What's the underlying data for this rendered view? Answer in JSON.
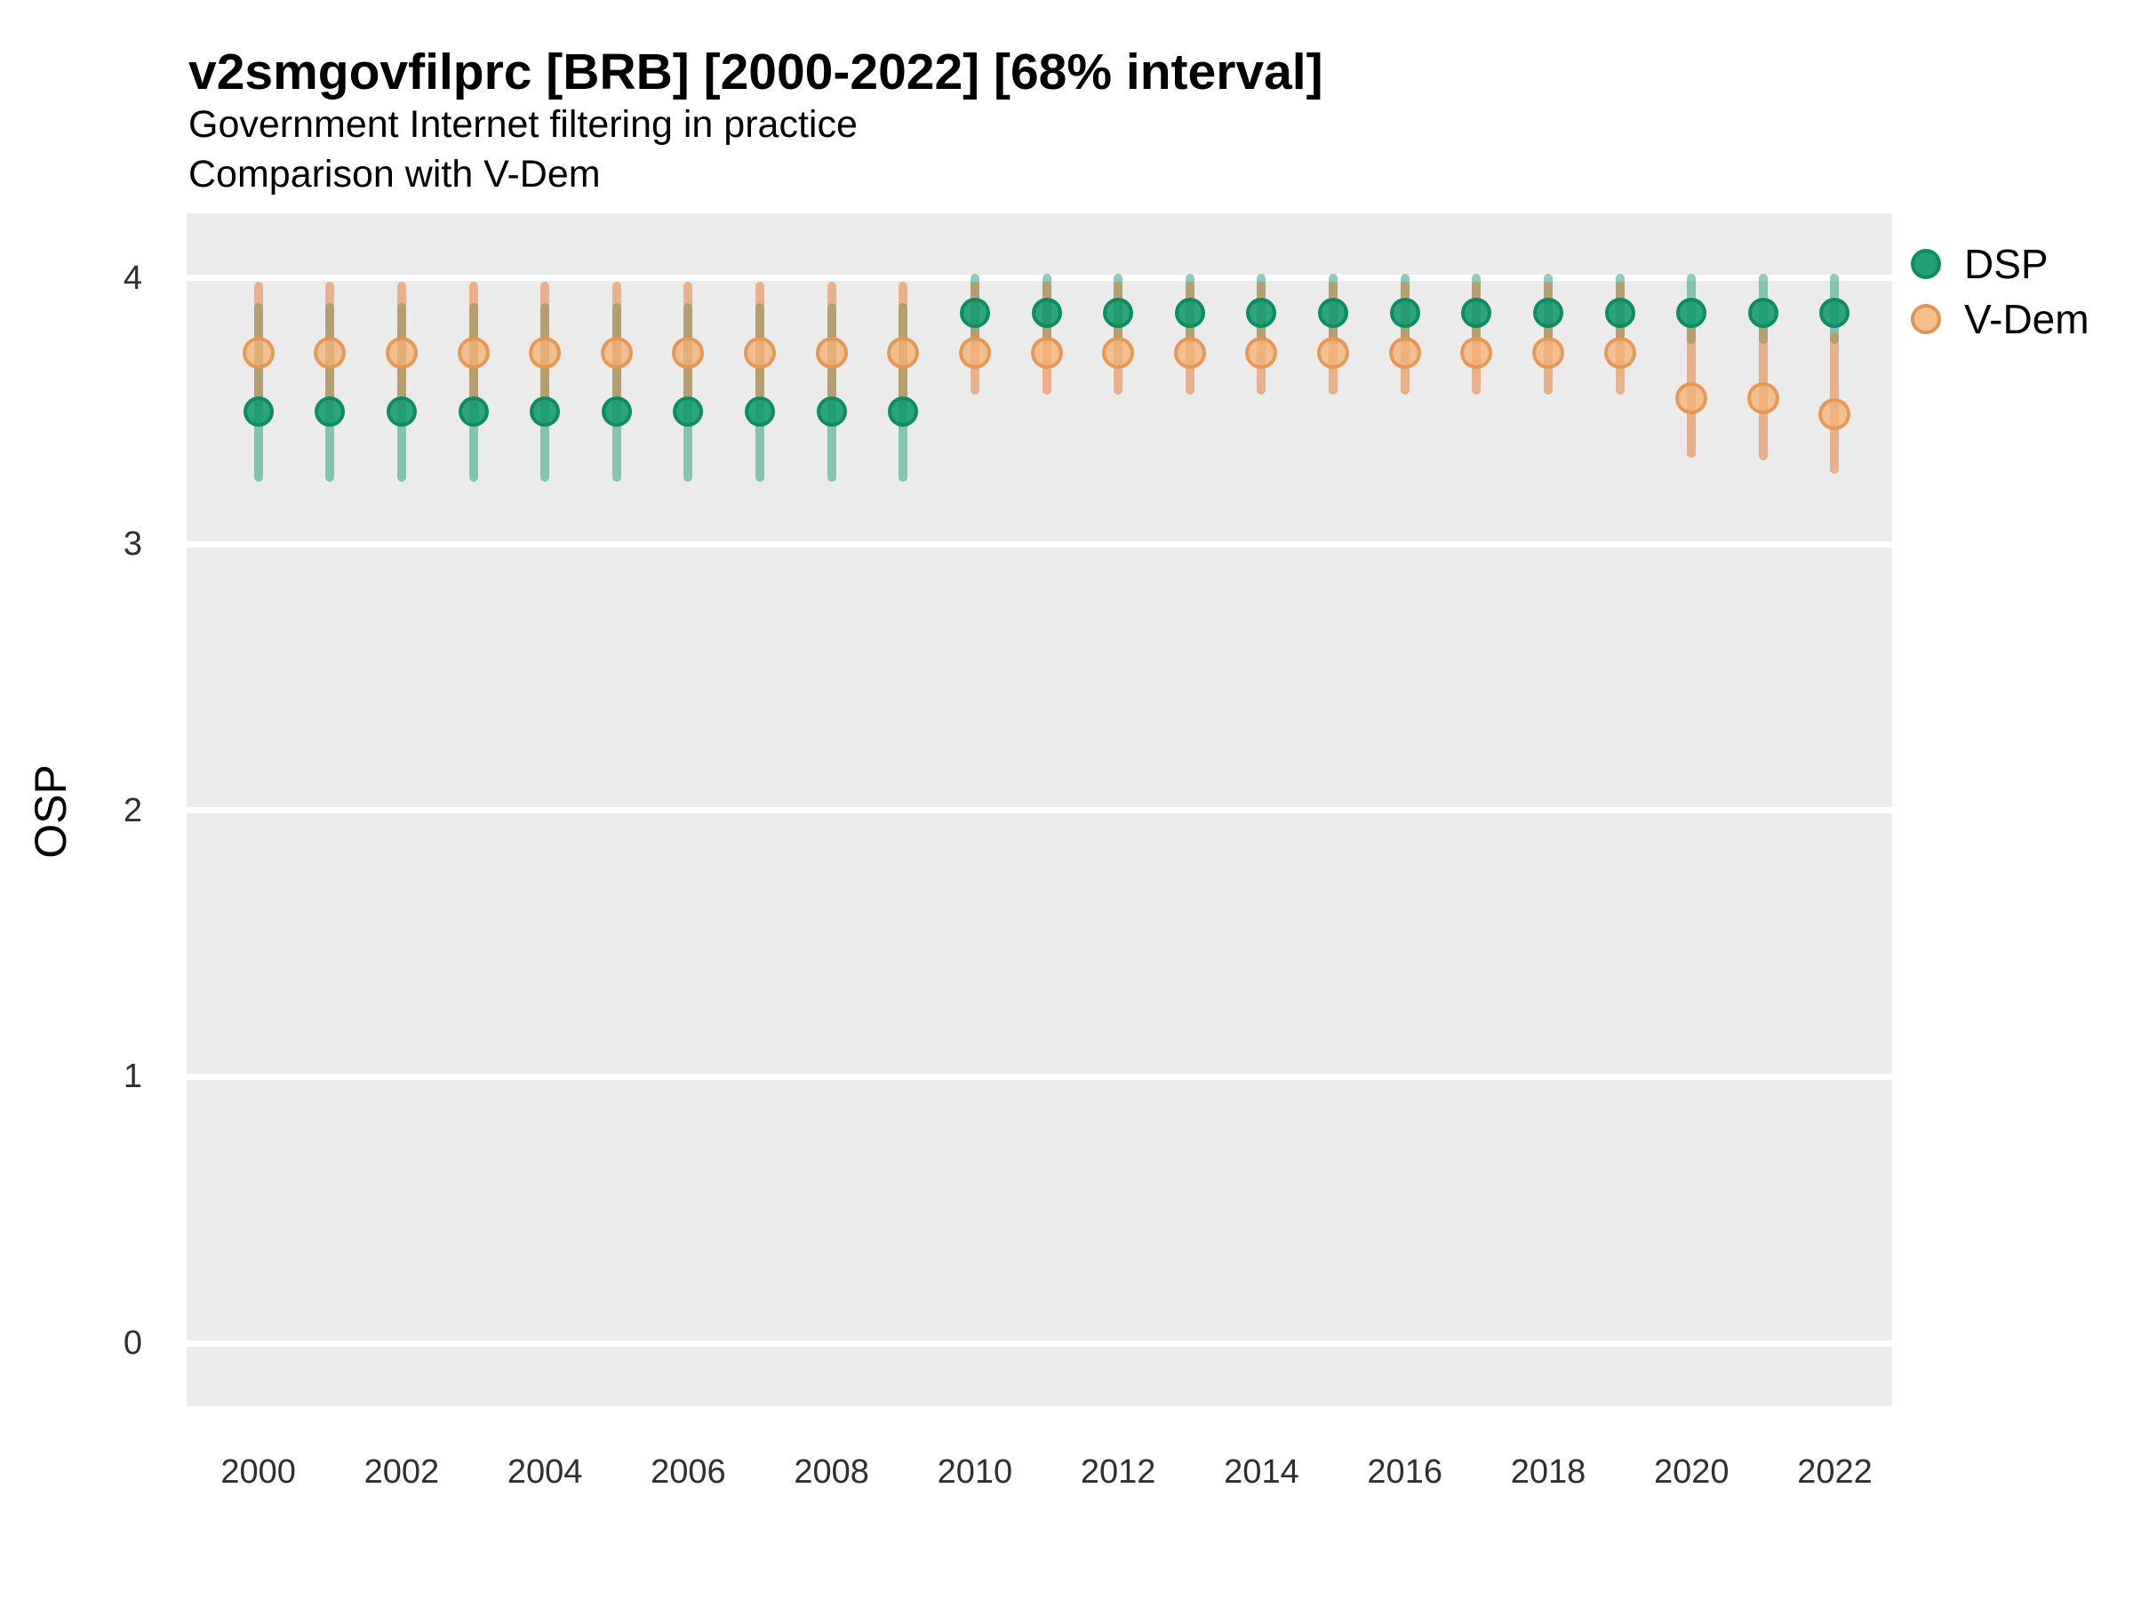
{
  "header": {
    "title": "v2smgovfilprc [BRB] [2000-2022] [68% interval]",
    "subtitle1": "Government Internet filtering in practice",
    "subtitle2": "Comparison with V-Dem"
  },
  "chart_data": {
    "type": "scatter",
    "subtype": "pointrange-interval-comparison",
    "title": "v2smgovfilprc [BRB] [2000-2022] [68% interval]",
    "subtitle": "Government Internet filtering in practice — Comparison with V-Dem",
    "xlabel": "",
    "ylabel": "OSP",
    "interval_level": "68%",
    "grid": "major-horizontal-white-on-gray",
    "panel_background": "#ebebeb",
    "legend_position": "right",
    "y_ticks": [
      4,
      3,
      2,
      1,
      0
    ],
    "x_ticks": [
      2000,
      2002,
      2004,
      2006,
      2008,
      2010,
      2012,
      2014,
      2016,
      2018,
      2020,
      2022
    ],
    "ylim": [
      -0.237,
      4.243
    ],
    "xlim": [
      1999.0,
      2022.8
    ],
    "series": [
      {
        "name": "DSP",
        "color": "#1b9e77",
        "points": [
          {
            "year": 2000,
            "mean": 3.5,
            "lo": 3.25,
            "hi": 3.89
          },
          {
            "year": 2001,
            "mean": 3.5,
            "lo": 3.25,
            "hi": 3.89
          },
          {
            "year": 2002,
            "mean": 3.5,
            "lo": 3.25,
            "hi": 3.89
          },
          {
            "year": 2003,
            "mean": 3.5,
            "lo": 3.25,
            "hi": 3.89
          },
          {
            "year": 2004,
            "mean": 3.5,
            "lo": 3.25,
            "hi": 3.89
          },
          {
            "year": 2005,
            "mean": 3.5,
            "lo": 3.25,
            "hi": 3.89
          },
          {
            "year": 2006,
            "mean": 3.5,
            "lo": 3.25,
            "hi": 3.89
          },
          {
            "year": 2007,
            "mean": 3.5,
            "lo": 3.25,
            "hi": 3.89
          },
          {
            "year": 2008,
            "mean": 3.5,
            "lo": 3.25,
            "hi": 3.89
          },
          {
            "year": 2009,
            "mean": 3.5,
            "lo": 3.25,
            "hi": 3.89
          },
          {
            "year": 2010,
            "mean": 3.87,
            "lo": 3.77,
            "hi": 4.0
          },
          {
            "year": 2011,
            "mean": 3.87,
            "lo": 3.77,
            "hi": 4.0
          },
          {
            "year": 2012,
            "mean": 3.87,
            "lo": 3.77,
            "hi": 4.0
          },
          {
            "year": 2013,
            "mean": 3.87,
            "lo": 3.77,
            "hi": 4.0
          },
          {
            "year": 2014,
            "mean": 3.87,
            "lo": 3.77,
            "hi": 4.0
          },
          {
            "year": 2015,
            "mean": 3.87,
            "lo": 3.77,
            "hi": 4.0
          },
          {
            "year": 2016,
            "mean": 3.87,
            "lo": 3.77,
            "hi": 4.0
          },
          {
            "year": 2017,
            "mean": 3.87,
            "lo": 3.77,
            "hi": 4.0
          },
          {
            "year": 2018,
            "mean": 3.87,
            "lo": 3.77,
            "hi": 4.0
          },
          {
            "year": 2019,
            "mean": 3.87,
            "lo": 3.77,
            "hi": 4.0
          },
          {
            "year": 2020,
            "mean": 3.87,
            "lo": 3.77,
            "hi": 4.0
          },
          {
            "year": 2021,
            "mean": 3.87,
            "lo": 3.77,
            "hi": 4.0
          },
          {
            "year": 2022,
            "mean": 3.87,
            "lo": 3.77,
            "hi": 4.0
          }
        ]
      },
      {
        "name": "V-Dem",
        "color": "#e0823c",
        "points": [
          {
            "year": 2000,
            "mean": 3.72,
            "lo": 3.53,
            "hi": 3.97
          },
          {
            "year": 2001,
            "mean": 3.72,
            "lo": 3.53,
            "hi": 3.97
          },
          {
            "year": 2002,
            "mean": 3.72,
            "lo": 3.53,
            "hi": 3.97
          },
          {
            "year": 2003,
            "mean": 3.72,
            "lo": 3.53,
            "hi": 3.97
          },
          {
            "year": 2004,
            "mean": 3.72,
            "lo": 3.53,
            "hi": 3.97
          },
          {
            "year": 2005,
            "mean": 3.72,
            "lo": 3.53,
            "hi": 3.97
          },
          {
            "year": 2006,
            "mean": 3.72,
            "lo": 3.53,
            "hi": 3.97
          },
          {
            "year": 2007,
            "mean": 3.72,
            "lo": 3.53,
            "hi": 3.97
          },
          {
            "year": 2008,
            "mean": 3.72,
            "lo": 3.53,
            "hi": 3.97
          },
          {
            "year": 2009,
            "mean": 3.72,
            "lo": 3.53,
            "hi": 3.97
          },
          {
            "year": 2010,
            "mean": 3.72,
            "lo": 3.58,
            "hi": 3.97
          },
          {
            "year": 2011,
            "mean": 3.72,
            "lo": 3.58,
            "hi": 3.97
          },
          {
            "year": 2012,
            "mean": 3.72,
            "lo": 3.58,
            "hi": 3.97
          },
          {
            "year": 2013,
            "mean": 3.72,
            "lo": 3.58,
            "hi": 3.97
          },
          {
            "year": 2014,
            "mean": 3.72,
            "lo": 3.58,
            "hi": 3.97
          },
          {
            "year": 2015,
            "mean": 3.72,
            "lo": 3.58,
            "hi": 3.97
          },
          {
            "year": 2016,
            "mean": 3.72,
            "lo": 3.58,
            "hi": 3.97
          },
          {
            "year": 2017,
            "mean": 3.72,
            "lo": 3.58,
            "hi": 3.97
          },
          {
            "year": 2018,
            "mean": 3.72,
            "lo": 3.58,
            "hi": 3.97
          },
          {
            "year": 2019,
            "mean": 3.72,
            "lo": 3.58,
            "hi": 3.97
          },
          {
            "year": 2020,
            "mean": 3.55,
            "lo": 3.34,
            "hi": 3.8
          },
          {
            "year": 2021,
            "mean": 3.55,
            "lo": 3.33,
            "hi": 3.8
          },
          {
            "year": 2022,
            "mean": 3.49,
            "lo": 3.28,
            "hi": 3.78
          }
        ]
      }
    ]
  }
}
